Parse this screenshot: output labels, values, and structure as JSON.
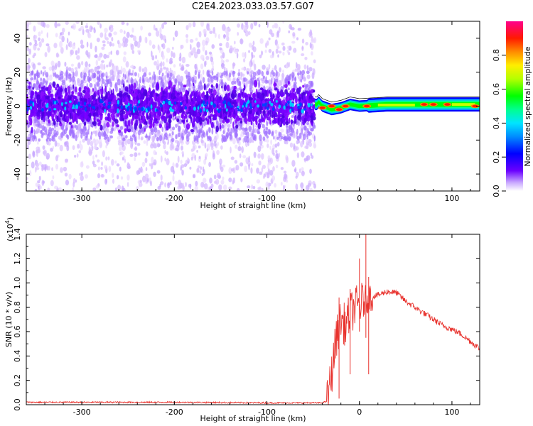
{
  "title": "C2E4.2023.033.03.57.G07",
  "chart_data": [
    {
      "type": "heatmap",
      "xlabel": "Height of straight line (km)",
      "ylabel": "Frequency (Hz)",
      "xlim": [
        -360,
        130
      ],
      "ylim": [
        -50,
        50
      ],
      "xticks": [
        -300,
        -200,
        -100,
        0,
        100
      ],
      "yticks": [
        -40,
        -20,
        0,
        20,
        40
      ],
      "colorbar": {
        "label": "Normalized spectral amplitude",
        "range": [
          0.0,
          1.0
        ],
        "ticks": [
          "0.0",
          "0.2",
          "0.4",
          "0.6",
          "0.8"
        ],
        "colormap": "rainbow (white→violet→blue→cyan→green→yellow→red→magenta)"
      },
      "description_of_content": {
        "noisy_region_x": [
          -360,
          -48
        ],
        "noisy_band_center_hz": 0,
        "noisy_band_halfwidth_hz": 8,
        "signal_region_x": [
          -48,
          130
        ],
        "signal_track": [
          {
            "x": -45,
            "y": 3
          },
          {
            "x": -40,
            "y": 0
          },
          {
            "x": -30,
            "y": -2
          },
          {
            "x": -20,
            "y": -1
          },
          {
            "x": -10,
            "y": 1
          },
          {
            "x": 0,
            "y": 0
          },
          {
            "x": 30,
            "y": 1
          },
          {
            "x": 60,
            "y": 1
          },
          {
            "x": 90,
            "y": 1
          },
          {
            "x": 130,
            "y": 1
          }
        ],
        "hot_spots": [
          {
            "x": -40,
            "y": -1
          },
          {
            "x": -30,
            "y": 0
          },
          {
            "x": -22,
            "y": -2
          },
          {
            "x": -15,
            "y": 0
          },
          {
            "x": 8,
            "y": 0
          },
          {
            "x": 70,
            "y": 1
          },
          {
            "x": 80,
            "y": 1
          },
          {
            "x": 95,
            "y": 1
          },
          {
            "x": 125,
            "y": 0
          }
        ]
      }
    },
    {
      "type": "line",
      "xlabel": "Height of straight line (km)",
      "ylabel": "SNR (10 * v/v)",
      "y_multiplier_label": "(x10",
      "y_multiplier_exp": "4",
      "y_multiplier_close": ")",
      "xlim": [
        -360,
        130
      ],
      "ylim": [
        0,
        1.4
      ],
      "xticks": [
        -300,
        -200,
        -100,
        0,
        100
      ],
      "yticks": [
        "0.0",
        "0.2",
        "0.4",
        "0.6",
        "0.8",
        "1.0",
        "1.2",
        "1.4"
      ],
      "series": [
        {
          "color": "#e8322d",
          "points": [
            [
              -360,
              0.02
            ],
            [
              -300,
              0.02
            ],
            [
              -200,
              0.02
            ],
            [
              -100,
              0.015
            ],
            [
              -40,
              0.015
            ],
            [
              -35,
              0.03
            ],
            [
              -30,
              0.25
            ],
            [
              -25,
              0.55
            ],
            [
              -20,
              0.7
            ],
            [
              -15,
              0.65
            ],
            [
              -10,
              0.75
            ],
            [
              -5,
              0.8
            ],
            [
              0,
              0.82
            ],
            [
              5,
              0.85
            ],
            [
              10,
              0.88
            ],
            [
              20,
              0.9
            ],
            [
              30,
              0.93
            ],
            [
              40,
              0.92
            ],
            [
              50,
              0.85
            ],
            [
              60,
              0.8
            ],
            [
              70,
              0.75
            ],
            [
              80,
              0.7
            ],
            [
              90,
              0.65
            ],
            [
              100,
              0.62
            ],
            [
              110,
              0.58
            ],
            [
              120,
              0.52
            ],
            [
              130,
              0.46
            ]
          ],
          "spikes": [
            {
              "x": -22,
              "hi": 0.88,
              "lo": 0.05
            },
            {
              "x": -10,
              "hi": 0.95,
              "lo": 0.25
            },
            {
              "x": 0,
              "hi": 1.2,
              "lo": 0.6
            },
            {
              "x": 7,
              "hi": 1.4,
              "lo": 0.55
            },
            {
              "x": 10,
              "hi": 1.05,
              "lo": 0.25
            }
          ]
        }
      ]
    }
  ]
}
